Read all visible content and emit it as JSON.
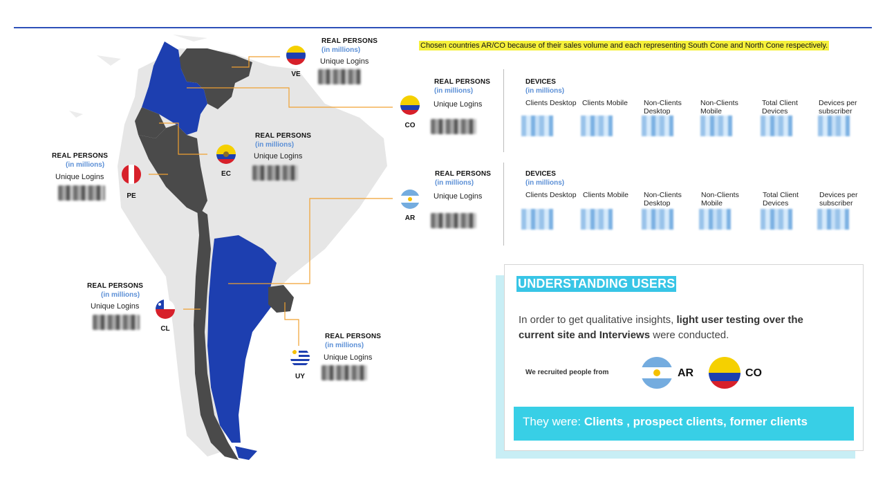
{
  "note": "Chosen countries AR/CO because of their sales volume and each representing South Cone and North Cone respectively.",
  "labels": {
    "real_persons": "REAL PERSONS",
    "in_millions": "(in millions)",
    "unique_logins": "Unique Logins",
    "devices": "DEVICES"
  },
  "countries": {
    "ve": "VE",
    "co": "CO",
    "ec": "EC",
    "pe": "PE",
    "ar": "AR",
    "cl": "CL",
    "uy": "UY"
  },
  "device_columns": [
    "Clients Desktop",
    "Clients Mobile",
    "Non-Clients Desktop",
    "Non-Clients Mobile",
    "Total Client Devices",
    "Devices per subscriber"
  ],
  "understanding": {
    "title": "UNDERSTANDING USERS",
    "text_pre": "In order to get qualitative insights,",
    "text_bold": "light user testing over the current site and Interviews",
    "text_post": "were conducted.",
    "recruited": "We recruited people from",
    "country_a": "AR",
    "country_b": "CO",
    "they_were": "They were:",
    "groups": "Clients , prospect clients, former clients"
  },
  "colors": {
    "accent_blue": "#1d3fb0",
    "highlight": "#f5f03a",
    "cyan": "#38cfe6",
    "map_dark": "#4a4a4a",
    "connector": "#f0a030"
  }
}
